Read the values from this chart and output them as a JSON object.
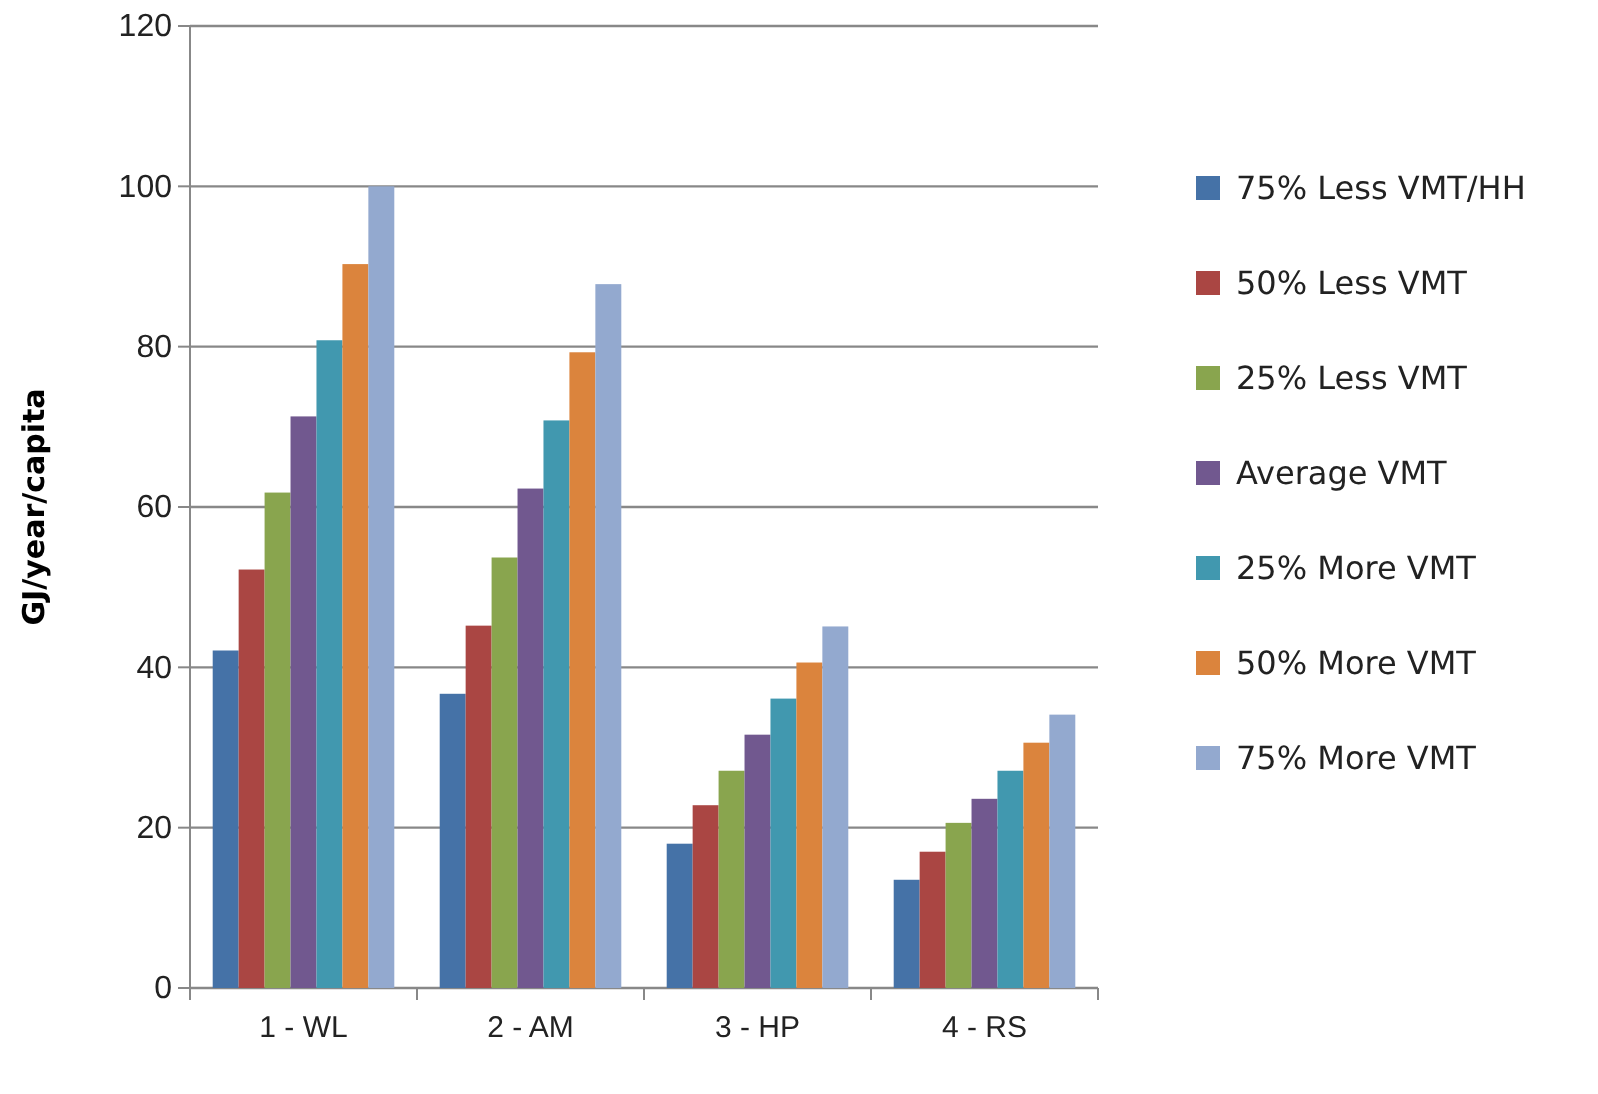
{
  "chart_data": {
    "type": "bar",
    "ylabel": "GJ/year/capita",
    "categories": [
      "1 - WL",
      "2 - AM",
      "3 - HP",
      "4 - RS"
    ],
    "series": [
      {
        "name": "75% Less VMT/HH",
        "color": "#4572a7",
        "values": [
          42.1,
          36.7,
          18,
          13.5
        ]
      },
      {
        "name": "50% Less VMT",
        "color": "#aa4643",
        "values": [
          52.2,
          45.2,
          22.8,
          17
        ]
      },
      {
        "name": "25% Less VMT",
        "color": "#89a54e",
        "values": [
          61.8,
          53.7,
          27.1,
          20.6
        ]
      },
      {
        "name": "Average VMT",
        "color": "#71588f",
        "values": [
          71.3,
          62.3,
          31.6,
          23.6
        ]
      },
      {
        "name": "25% More VMT",
        "color": "#4198af",
        "values": [
          80.8,
          70.8,
          36.1,
          27.1
        ]
      },
      {
        "name": "50% More VMT",
        "color": "#db843d",
        "values": [
          90.3,
          79.3,
          40.6,
          30.6
        ]
      },
      {
        "name": "75% More VMT",
        "color": "#93a9cf",
        "values": [
          100,
          87.8,
          45.1,
          34.1
        ]
      }
    ],
    "ylim": [
      0,
      120
    ],
    "yticks": [
      0,
      20,
      40,
      60,
      80,
      100,
      120
    ],
    "grid": "y",
    "legend": "right"
  }
}
